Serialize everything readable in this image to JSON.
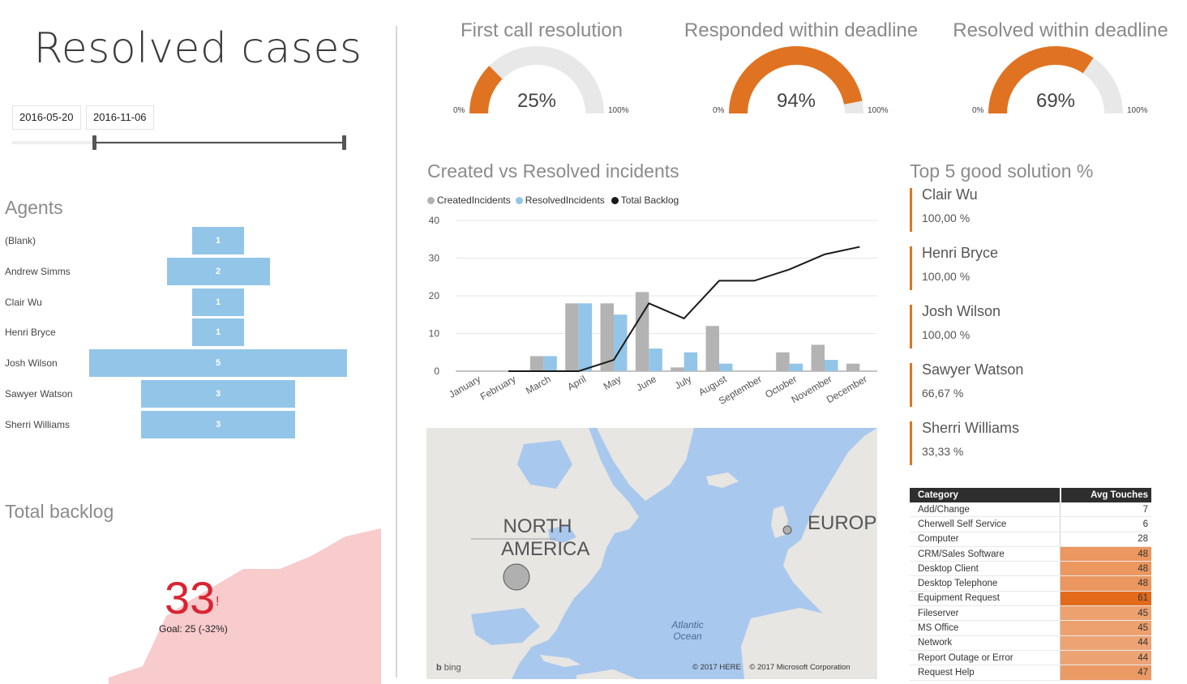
{
  "page_title": "Resolved cases",
  "date_range": {
    "start": "2016-05-20",
    "end": "2016-11-06"
  },
  "agents": {
    "title": "Agents",
    "rows": [
      {
        "name": "(Blank)",
        "value": 1
      },
      {
        "name": "Andrew Simms",
        "value": 2
      },
      {
        "name": "Clair Wu",
        "value": 1
      },
      {
        "name": "Henri Bryce",
        "value": 1
      },
      {
        "name": "Josh Wilson",
        "value": 5
      },
      {
        "name": "Sawyer Watson",
        "value": 3
      },
      {
        "name": "Sherri Williams",
        "value": 3
      }
    ]
  },
  "backlog": {
    "title": "Total backlog",
    "value": "33",
    "alert": "!",
    "goal": "Goal: 25 (-32%)"
  },
  "gauges": [
    {
      "title": "First call resolution",
      "value_text": "25%",
      "value": 0.25,
      "min": "0%",
      "max": "100%"
    },
    {
      "title": "Responded within deadline",
      "value_text": "94%",
      "value": 0.94,
      "min": "0%",
      "max": "100%"
    },
    {
      "title": "Resolved within deadline",
      "value_text": "69%",
      "value": 0.69,
      "min": "0%",
      "max": "100%"
    }
  ],
  "chart_data": {
    "type": "bar",
    "title": "Created vs Resolved incidents",
    "categories": [
      "January",
      "February",
      "March",
      "April",
      "May",
      "June",
      "July",
      "August",
      "September",
      "October",
      "November",
      "December"
    ],
    "series": [
      {
        "name": "CreatedIncidents",
        "kind": "bar",
        "color": "#b3b3b3",
        "values": [
          0,
          0,
          4,
          18,
          18,
          21,
          1,
          12,
          0,
          5,
          7,
          2
        ]
      },
      {
        "name": "ResolvedIncidents",
        "kind": "bar",
        "color": "#92c5e8",
        "values": [
          0,
          0,
          4,
          18,
          15,
          6,
          5,
          2,
          0,
          2,
          3,
          0
        ]
      },
      {
        "name": "Total Backlog",
        "kind": "line",
        "color": "#1a1a1a",
        "values": [
          0,
          0,
          0,
          0,
          3,
          18,
          14,
          24,
          24,
          27,
          31,
          33
        ]
      }
    ],
    "yticks": [
      0,
      10,
      20,
      30,
      40
    ],
    "ylim": [
      0,
      40
    ],
    "legend": "top-left",
    "grid": true
  },
  "map": {
    "labels": [
      "NORTH AMERICA",
      "EUROPE",
      "Atlantic Ocean"
    ],
    "attribution": "© 2017 HERE    © 2017 Microsoft Corporation",
    "brand": "bing"
  },
  "top5": {
    "title": "Top 5 good solution %",
    "items": [
      {
        "name": "Clair Wu",
        "value": "100,00 %"
      },
      {
        "name": "Henri Bryce",
        "value": "100,00 %"
      },
      {
        "name": "Josh Wilson",
        "value": "100,00 %"
      },
      {
        "name": "Sawyer Watson",
        "value": "66,67 %"
      },
      {
        "name": "Sherri Williams",
        "value": "33,33 %"
      }
    ]
  },
  "category_table": {
    "headers": [
      "Category",
      "Avg Touches"
    ],
    "rows": [
      {
        "category": "Add/Change",
        "value": 7
      },
      {
        "category": "Cherwell Self Service",
        "value": 6
      },
      {
        "category": "Computer",
        "value": 28
      },
      {
        "category": "CRM/Sales Software",
        "value": 48
      },
      {
        "category": "Desktop Client",
        "value": 48
      },
      {
        "category": "Desktop Telephone",
        "value": 48
      },
      {
        "category": "Equipment Request",
        "value": 61
      },
      {
        "category": "Fileserver",
        "value": 45
      },
      {
        "category": "MS Office",
        "value": 45
      },
      {
        "category": "Network",
        "value": 44
      },
      {
        "category": "Report Outage or Error",
        "value": 44
      },
      {
        "category": "Request Help",
        "value": 47
      }
    ]
  },
  "colors": {
    "accent": "#e07321",
    "bar_blue": "#92c5e8",
    "gauge_bg": "#e8e8e8",
    "backlog_red": "#d92432",
    "backlog_area": "#f8cbcd"
  }
}
